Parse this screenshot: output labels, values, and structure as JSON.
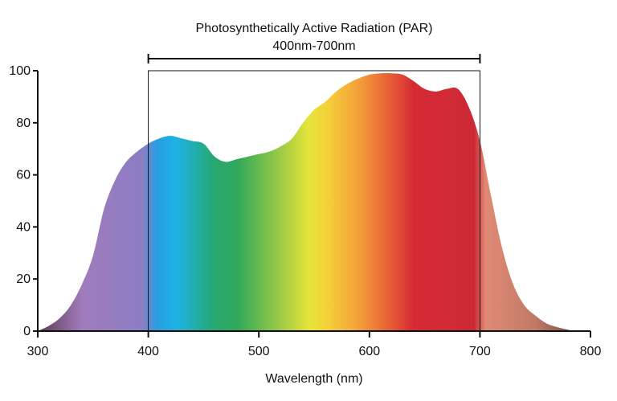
{
  "chart_data": {
    "type": "area",
    "title": "",
    "xlabel": "Wavelength (nm)",
    "ylabel": "",
    "xlim": [
      300,
      800
    ],
    "ylim": [
      0,
      100
    ],
    "xticks": [
      300,
      400,
      500,
      600,
      700,
      800
    ],
    "yticks": [
      0,
      20,
      40,
      60,
      80,
      100
    ],
    "grid": false,
    "series": [
      {
        "x": [
          300,
          310,
          320,
          330,
          340,
          350,
          360,
          370,
          380,
          390,
          400,
          410,
          420,
          430,
          440,
          450,
          460,
          470,
          480,
          490,
          500,
          510,
          520,
          530,
          540,
          550,
          560,
          570,
          580,
          590,
          600,
          610,
          620,
          630,
          640,
          650,
          660,
          670,
          680,
          690,
          700,
          710,
          720,
          730,
          740,
          750,
          760,
          770,
          780,
          785
        ],
        "y": [
          0,
          2,
          5,
          10,
          18,
          29,
          47,
          58,
          65,
          69,
          72,
          74,
          75,
          74,
          73,
          72,
          67,
          65,
          66,
          67,
          68,
          69,
          71,
          74,
          80,
          85,
          88,
          92,
          95,
          97,
          98.5,
          99,
          99,
          98.5,
          96,
          93,
          92,
          93,
          93,
          86,
          73,
          52,
          32,
          18,
          10,
          6,
          3,
          1.5,
          0.5,
          0
        ]
      }
    ],
    "annotations": [
      {
        "type": "range-bracket",
        "x_range": [
          400,
          700
        ],
        "lines": [
          "Photosynthetically Active Radiation (PAR)",
          "400nm-700nm"
        ]
      }
    ],
    "par_box": {
      "x_range": [
        400,
        700
      ],
      "y_range": [
        0,
        100
      ]
    },
    "colors": {
      "violet": "#8c7cc4",
      "uv_purple": "#a07cbc",
      "blue": "#1db2e6",
      "green": "#2ea85a",
      "yellow": "#e6e43a",
      "orange": "#f4a13a",
      "red": "#d62a35",
      "far_red": "#e08a74",
      "tail_dark": "#5a4038",
      "axis": "#111111"
    }
  }
}
